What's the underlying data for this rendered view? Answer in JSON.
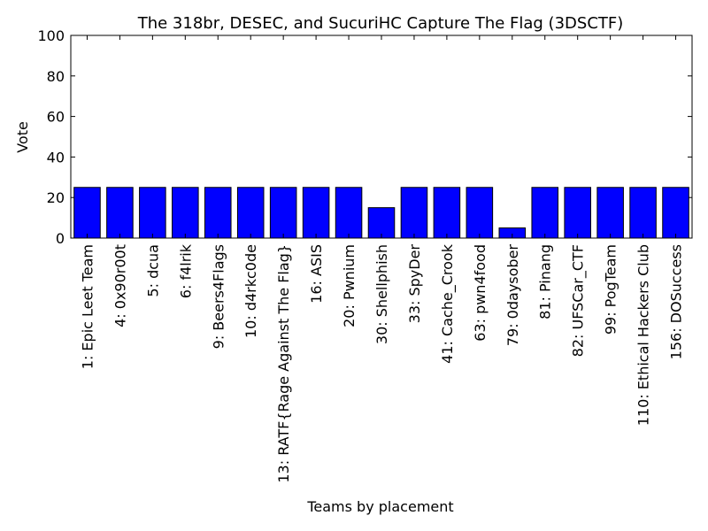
{
  "chart_data": {
    "type": "bar",
    "title": "The 318br, DESEC, and SucuriHC Capture The Flag (3DSCTF)",
    "xlabel": "Teams by placement",
    "ylabel": "Vote",
    "ylim": [
      0,
      100
    ],
    "yticks": [
      "0",
      "20",
      "40",
      "60",
      "80",
      "100"
    ],
    "grid": false,
    "legend": "none",
    "bar_color": "#0000ff",
    "categories": [
      "1: Epic Leet Team",
      "4: 0x90r00t",
      "5: dcua",
      "6: f4lrik",
      "9: Beers4Flags",
      "10: d4rkc0de",
      "13: RATF{Rage Against The Flag}",
      "16: ASIS",
      "20: Pwnium",
      "30: Shellphish",
      "33: SpyDer",
      "41: Cache_Crook",
      "63: pwn4food",
      "79: 0daysober",
      "81: Pinang",
      "82: UFSCar_CTF",
      "99: PogTeam",
      "110: Ethical Hackers Club",
      "156: DOSuccess"
    ],
    "values": [
      25,
      25,
      25,
      25,
      25,
      25,
      25,
      25,
      25,
      15,
      25,
      25,
      25,
      5,
      25,
      25,
      25,
      25,
      25
    ]
  }
}
